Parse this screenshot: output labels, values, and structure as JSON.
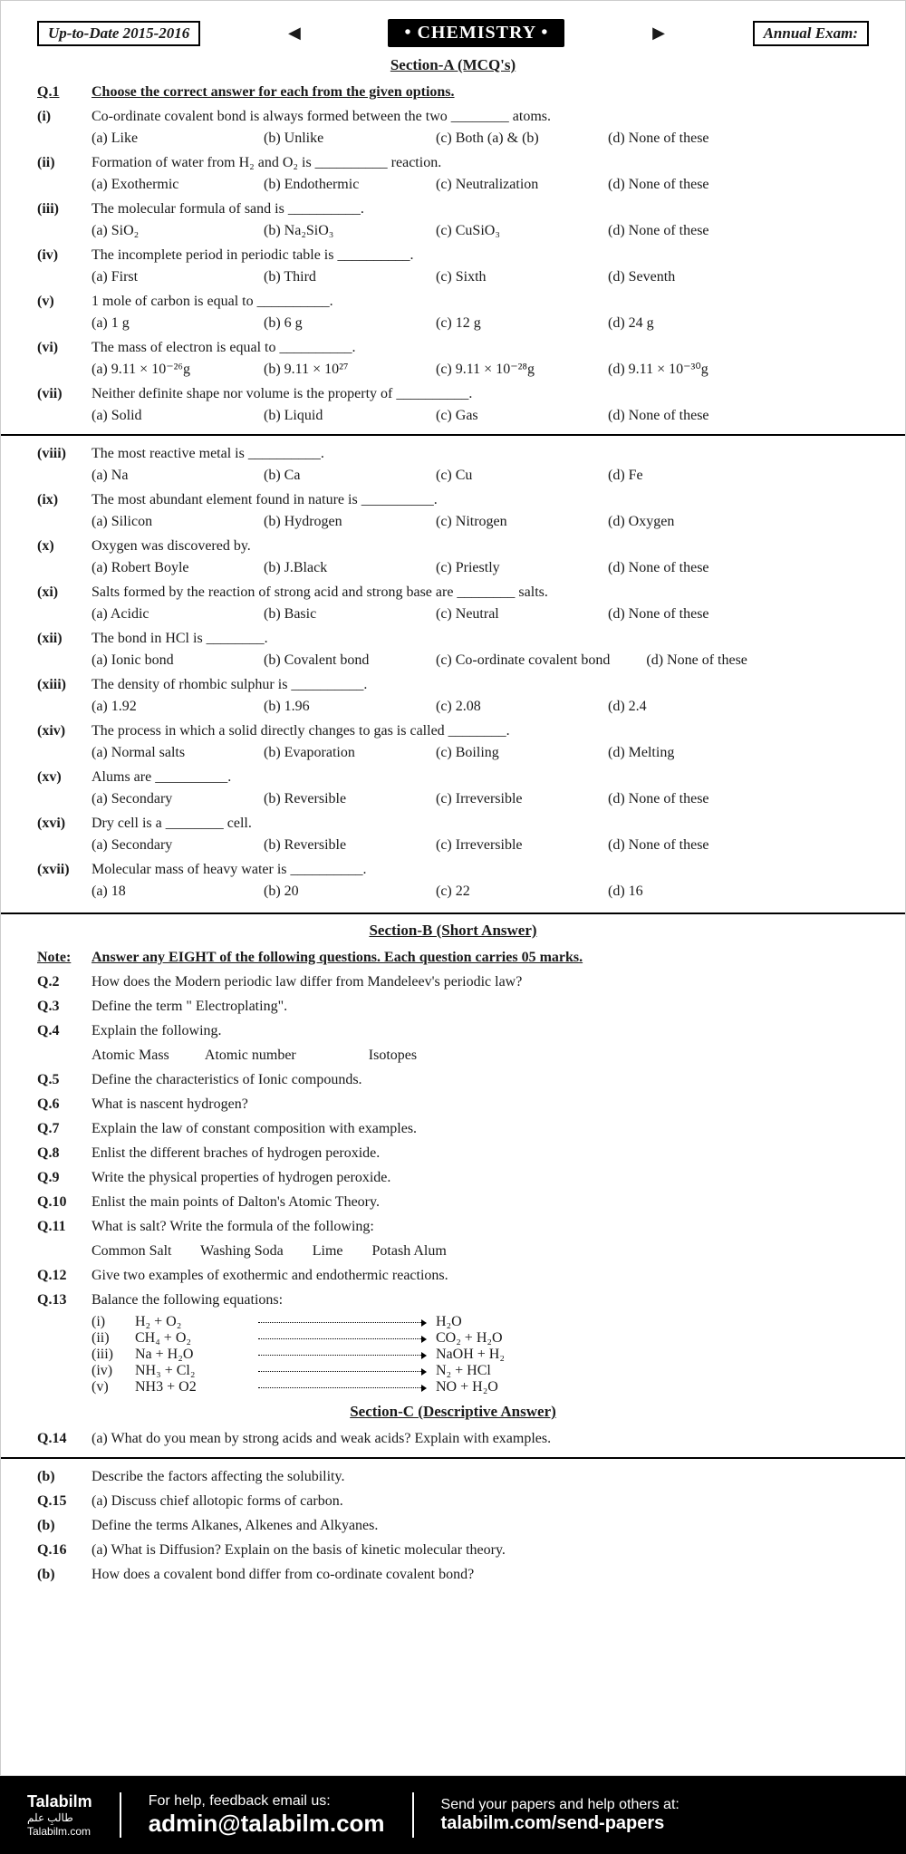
{
  "header": {
    "uptodate": "Up-to-Date 2015-2016",
    "subject": "CHEMISTRY",
    "exam": "Annual Exam:"
  },
  "sectionA": {
    "title": "Section-A (MCQ's)",
    "q1label": "Q.1",
    "q1text": "Choose the correct answer for each from the given options.",
    "items": [
      {
        "num": "(i)",
        "q": "Co-ordinate covalent bond is always formed between the two ________ atoms.",
        "opts": [
          "(a) Like",
          "(b) Unlike",
          "(c) Both (a) & (b)",
          "(d) None of these"
        ]
      },
      {
        "num": "(ii)",
        "q": "Formation of water from H₂ and O₂ is __________ reaction.",
        "opts": [
          "(a) Exothermic",
          "(b) Endothermic",
          "(c) Neutralization",
          "(d) None of these"
        ]
      },
      {
        "num": "(iii)",
        "q": "The molecular formula of sand is __________.",
        "opts": [
          "(a) SiO₂",
          "(b) Na₂SiO₃",
          "(c) CuSiO₃",
          "(d) None of these"
        ]
      },
      {
        "num": "(iv)",
        "q": "The incomplete period in periodic table is __________.",
        "opts": [
          "(a) First",
          "(b) Third",
          "(c) Sixth",
          "(d) Seventh"
        ]
      },
      {
        "num": "(v)",
        "q": "1 mole of carbon is equal to __________.",
        "opts": [
          "(a) 1 g",
          "(b) 6 g",
          "(c) 12 g",
          "(d) 24 g"
        ]
      },
      {
        "num": "(vi)",
        "q": "The mass of electron is equal to __________.",
        "opts": [
          "(a) 9.11 × 10⁻²⁶g",
          "(b) 9.11 × 10²⁷",
          "(c) 9.11 × 10⁻²⁸g",
          "(d) 9.11 × 10⁻³⁰g"
        ]
      },
      {
        "num": "(vii)",
        "q": "Neither definite shape nor volume is the property of __________.",
        "opts": [
          "(a) Solid",
          "(b) Liquid",
          "(c) Gas",
          "(d) None of these"
        ]
      }
    ],
    "itemsBox": [
      {
        "num": "(viii)",
        "q": "The most reactive metal is __________.",
        "opts": [
          "(a) Na",
          "(b) Ca",
          "(c) Cu",
          "(d) Fe"
        ]
      },
      {
        "num": "(ix)",
        "q": "The most abundant element found in nature is __________.",
        "opts": [
          "(a) Silicon",
          "(b) Hydrogen",
          "(c) Nitrogen",
          "(d) Oxygen"
        ]
      },
      {
        "num": "(x)",
        "q": "Oxygen was discovered by.",
        "opts": [
          "(a) Robert Boyle",
          "(b) J.Black",
          "(c) Priestly",
          "(d) None of these"
        ]
      },
      {
        "num": "(xi)",
        "q": "Salts formed by the reaction of strong acid and strong base are ________ salts.",
        "opts": [
          "(a) Acidic",
          "(b) Basic",
          "(c) Neutral",
          "(d) None of these"
        ]
      },
      {
        "num": "(xii)",
        "q": "The bond in HCl is ________.",
        "opts": [
          "(a) Ionic bond",
          "(b) Covalent bond",
          "(c) Co-ordinate covalent bond",
          "(d) None of these"
        ]
      },
      {
        "num": "(xiii)",
        "q": "The density of rhombic sulphur is __________.",
        "opts": [
          "(a) 1.92",
          "(b) 1.96",
          "(c) 2.08",
          "(d) 2.4"
        ]
      },
      {
        "num": "(xiv)",
        "q": "The process in which a solid directly changes to gas is called ________.",
        "opts": [
          "(a) Normal salts",
          "(b) Evaporation",
          "(c) Boiling",
          "(d) Melting"
        ]
      },
      {
        "num": "(xv)",
        "q": "Alums are __________.",
        "opts": [
          "(a) Secondary",
          "(b) Reversible",
          "(c) Irreversible",
          "(d) None of these"
        ]
      },
      {
        "num": "(xvi)",
        "q": "Dry cell is a ________ cell.",
        "opts": [
          "(a) Secondary",
          "(b) Reversible",
          "(c) Irreversible",
          "(d) None of these"
        ]
      },
      {
        "num": "(xvii)",
        "q": "Molecular mass of heavy water is __________.",
        "opts": [
          "(a) 18",
          "(b) 20",
          "(c) 22",
          "(d) 16"
        ]
      }
    ]
  },
  "sectionB": {
    "title": "Section-B  (Short Answer)",
    "noteLabel": "Note:",
    "noteText": "Answer any EIGHT of the following questions. Each question carries 05 marks.",
    "questions": [
      {
        "num": "Q.2",
        "text": "How does the Modern periodic law differ from Mandeleev's periodic law?"
      },
      {
        "num": "Q.3",
        "text": "Define the term \" Electroplating\"."
      },
      {
        "num": "Q.4",
        "text": "Explain the following."
      },
      {
        "num": "",
        "text": "Atomic Mass          Atomic number                    Isotopes"
      },
      {
        "num": "Q.5",
        "text": "Define the characteristics of Ionic compounds."
      },
      {
        "num": "Q.6",
        "text": "What is nascent hydrogen?"
      },
      {
        "num": "Q.7",
        "text": "Explain the law of constant composition with examples."
      },
      {
        "num": "Q.8",
        "text": "Enlist the different braches of hydrogen peroxide."
      },
      {
        "num": "Q.9",
        "text": "Write the physical properties of hydrogen peroxide."
      },
      {
        "num": "Q.10",
        "text": "Enlist the main points of Dalton's Atomic Theory."
      },
      {
        "num": "Q.11",
        "text": "What is salt? Write the formula of the following:"
      },
      {
        "num": "",
        "text": "Common Salt        Washing Soda        Lime        Potash Alum"
      },
      {
        "num": "Q.12",
        "text": "Give two examples of exothermic and endothermic reactions."
      },
      {
        "num": "Q.13",
        "text": "Balance the following equations:"
      }
    ],
    "equations": [
      {
        "label": "(i)",
        "left": "H₂ + O₂",
        "right": "H₂O"
      },
      {
        "label": "(ii)",
        "left": "CH₄ + O₂",
        "right": "CO₂ + H₂O"
      },
      {
        "label": "(iii)",
        "left": "Na + H₂O",
        "right": "NaOH + H₂"
      },
      {
        "label": "(iv)",
        "left": "NH₃ + Cl₂",
        "right": "N₂ + HCl"
      },
      {
        "label": "(v)",
        "left": "NH3 + O2",
        "right": "NO + H₂O"
      }
    ]
  },
  "sectionC": {
    "title": "Section-C (Descriptive Answer)",
    "items": [
      {
        "num": "Q.14",
        "text": "(a) What do you mean by strong acids and weak acids? Explain with examples."
      },
      {
        "num": "(b)",
        "text": "Describe the factors affecting the solubility."
      },
      {
        "num": "Q.15",
        "text": "(a) Discuss chief allotopic forms of carbon."
      },
      {
        "num": "(b)",
        "text": "Define the terms Alkanes, Alkenes and Alkyanes."
      },
      {
        "num": "Q.16",
        "text": "(a) What is Diffusion? Explain on the basis of kinetic molecular theory."
      },
      {
        "num": "(b)",
        "text": "How does a covalent bond differ from co-ordinate covalent bond?"
      }
    ]
  },
  "footer": {
    "brand": "Talabilm",
    "brandSub": "Talabilm.com",
    "helpSmall": "For help, feedback email us:",
    "helpBig": "admin@talabilm.com",
    "sendSmall": "Send your papers and help others at:",
    "sendBig": "talabilm.com/send-papers"
  },
  "colors": {
    "bg": "#ffffff",
    "text": "#1a1a1a",
    "footer_bg": "#000000",
    "footer_text": "#ffffff",
    "watermark": "#d0d0d0"
  }
}
